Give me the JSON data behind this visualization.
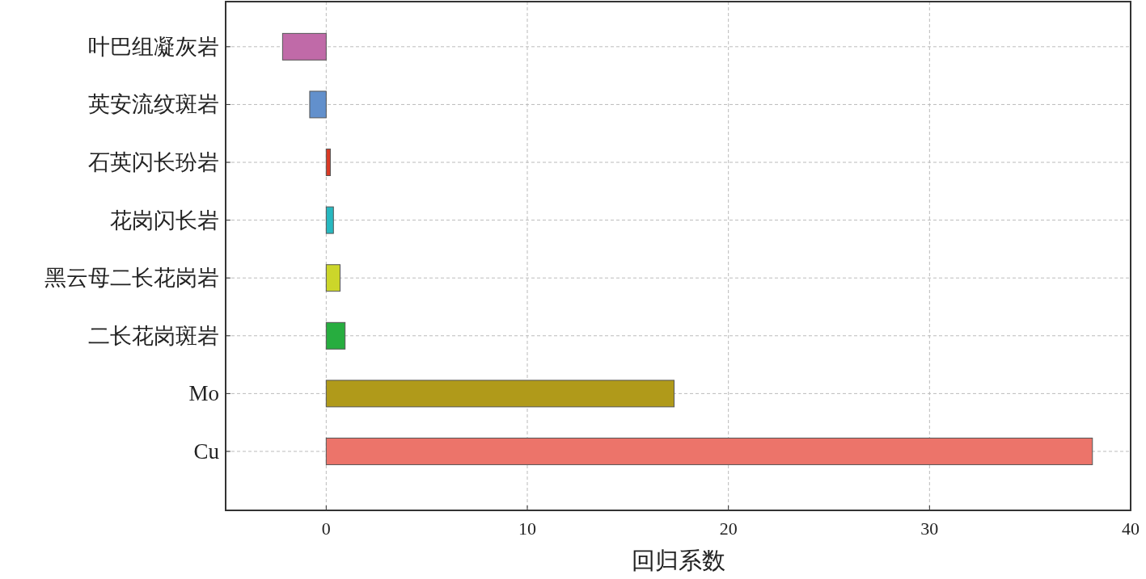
{
  "chart_data": {
    "type": "bar",
    "orientation": "horizontal",
    "xlabel": "回归系数",
    "categories": [
      "叶巴组凝灰岩",
      "英安流纹斑岩",
      "石英闪长玢岩",
      "花岗闪长岩",
      "黑云母二长花岗岩",
      "二长花岗斑岩",
      "Mo",
      "Cu"
    ],
    "values": [
      -2.17,
      -0.82,
      0.21,
      0.36,
      0.69,
      0.94,
      17.3,
      38.1
    ],
    "colors": [
      "#c06aa8",
      "#6290cc",
      "#d93a25",
      "#27b8c0",
      "#ccd62a",
      "#27ad3f",
      "#b09a1a",
      "#ec746a"
    ],
    "xlim": [
      -5,
      40
    ],
    "xticks": [
      0,
      10,
      20,
      30,
      40
    ],
    "grid": true
  }
}
